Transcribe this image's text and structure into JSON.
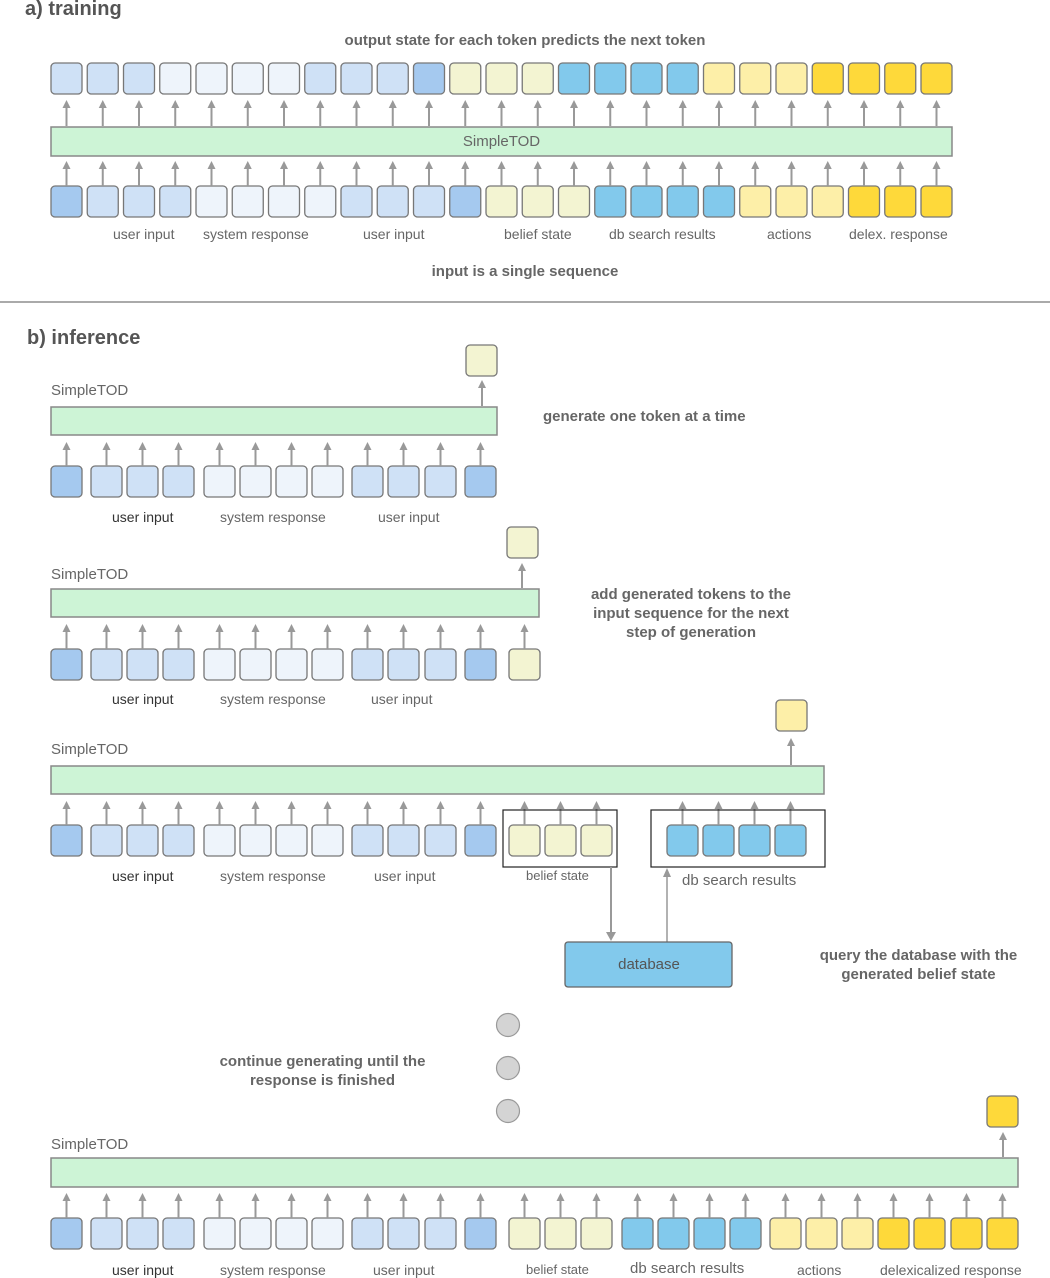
{
  "colors": {
    "dark": "#a5c9ef",
    "mid": "#cfe1f6",
    "light": "#eef4fb",
    "pale": "#f3f4d2",
    "sky": "#82c9ec",
    "ly": "#fdefa8",
    "gold": "#fed93a",
    "bar": "#cdf4d6",
    "db": "#82c9ec"
  },
  "training": {
    "heading": "a) training",
    "top_caption": "output state for each token predicts the next token",
    "bottom_caption": "input is a single sequence",
    "model": "SimpleTOD",
    "outputs": [
      "mid",
      "mid",
      "mid",
      "light",
      "light",
      "light",
      "light",
      "mid",
      "mid",
      "mid",
      "dark",
      "pale",
      "pale",
      "pale",
      "sky",
      "sky",
      "sky",
      "sky",
      "ly",
      "ly",
      "ly",
      "gold",
      "gold",
      "gold",
      "gold"
    ],
    "inputs": [
      "dark",
      "mid",
      "mid",
      "mid",
      "light",
      "light",
      "light",
      "light",
      "mid",
      "mid",
      "mid",
      "dark",
      "pale",
      "pale",
      "pale",
      "sky",
      "sky",
      "sky",
      "sky",
      "ly",
      "ly",
      "ly",
      "gold",
      "gold",
      "gold"
    ],
    "labels": [
      "user input",
      "system response",
      "user input",
      "belief state",
      "db search results",
      "actions",
      "delex. response"
    ]
  },
  "inference": {
    "heading": "b) inference",
    "model": "SimpleTOD",
    "step1_caption": "generate one token at a time",
    "step2_caption": "add generated tokens to the input sequence for the next step of generation",
    "step3_caption": "query the database with the generated belief state",
    "step4_caption": "continue generating until the response is finished",
    "database": "database",
    "labels": {
      "user_input": "user input",
      "system_response": "system response",
      "belief_state": "belief state",
      "db_search_results": "db search results",
      "actions": "actions",
      "delexicalized_response": "delexicalized response"
    }
  }
}
